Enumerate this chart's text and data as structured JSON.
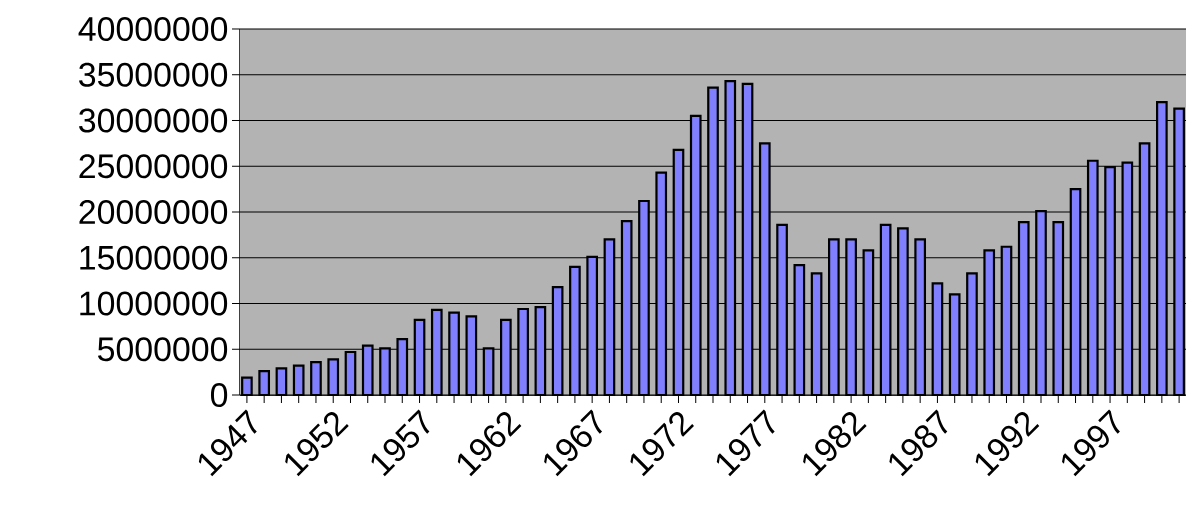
{
  "chart_data": {
    "type": "bar",
    "categories": [
      "1947",
      null,
      null,
      null,
      null,
      "1952",
      null,
      null,
      null,
      null,
      "1957",
      null,
      null,
      null,
      null,
      "1962",
      null,
      null,
      null,
      null,
      "1967",
      null,
      null,
      null,
      null,
      "1972",
      null,
      null,
      null,
      null,
      "1977",
      null,
      null,
      null,
      null,
      "1982",
      null,
      null,
      null,
      null,
      "1987",
      null,
      null,
      null,
      null,
      "1992",
      null,
      null,
      null,
      null,
      "1997",
      null,
      null,
      null,
      null
    ],
    "values": [
      1900000,
      2600000,
      2900000,
      3200000,
      3600000,
      3900000,
      4700000,
      5400000,
      5100000,
      6100000,
      8200000,
      9300000,
      9000000,
      8600000,
      5100000,
      8200000,
      9400000,
      9600000,
      11800000,
      14000000,
      15100000,
      17000000,
      19000000,
      21200000,
      24300000,
      26800000,
      30500000,
      33600000,
      34300000,
      34000000,
      27500000,
      18600000,
      14200000,
      13300000,
      17000000,
      17000000,
      15800000,
      18600000,
      18200000,
      17000000,
      12200000,
      11000000,
      13300000,
      15800000,
      16200000,
      18900000,
      20100000,
      18900000,
      22500000,
      25600000,
      24900000,
      25400000,
      27500000,
      32000000,
      31300000
    ],
    "color": "#8080ff",
    "ylim": [
      0,
      40000000
    ],
    "yticks": [
      0,
      5000000,
      10000000,
      15000000,
      20000000,
      25000000,
      30000000,
      35000000,
      40000000
    ],
    "grid": "y"
  }
}
